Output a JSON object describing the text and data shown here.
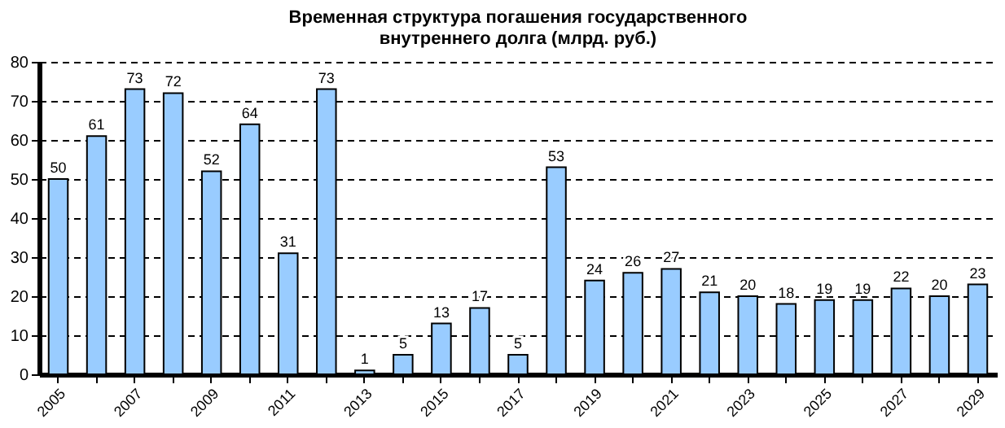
{
  "chart_data": {
    "type": "bar",
    "title": [
      "Временная структура погашения государственного",
      "внутреннего долга (млрд. руб.)"
    ],
    "categories": [
      "2005",
      null,
      "2007",
      null,
      "2009",
      null,
      "2011",
      null,
      "2013",
      null,
      "2015",
      null,
      "2017",
      null,
      "2019",
      null,
      "2021",
      null,
      "2023",
      null,
      "2025",
      null,
      "2027",
      null,
      "2029"
    ],
    "values": [
      50,
      61,
      73,
      72,
      52,
      64,
      31,
      73,
      1,
      5,
      13,
      17,
      5,
      53,
      24,
      26,
      27,
      21,
      20,
      18,
      19,
      19,
      22,
      20,
      23
    ],
    "color": "#99ccff",
    "ylim": [
      0,
      80
    ],
    "yticks": [
      0,
      10,
      20,
      30,
      40,
      50,
      60,
      70,
      80
    ],
    "grid": "y",
    "data_labels": true
  }
}
